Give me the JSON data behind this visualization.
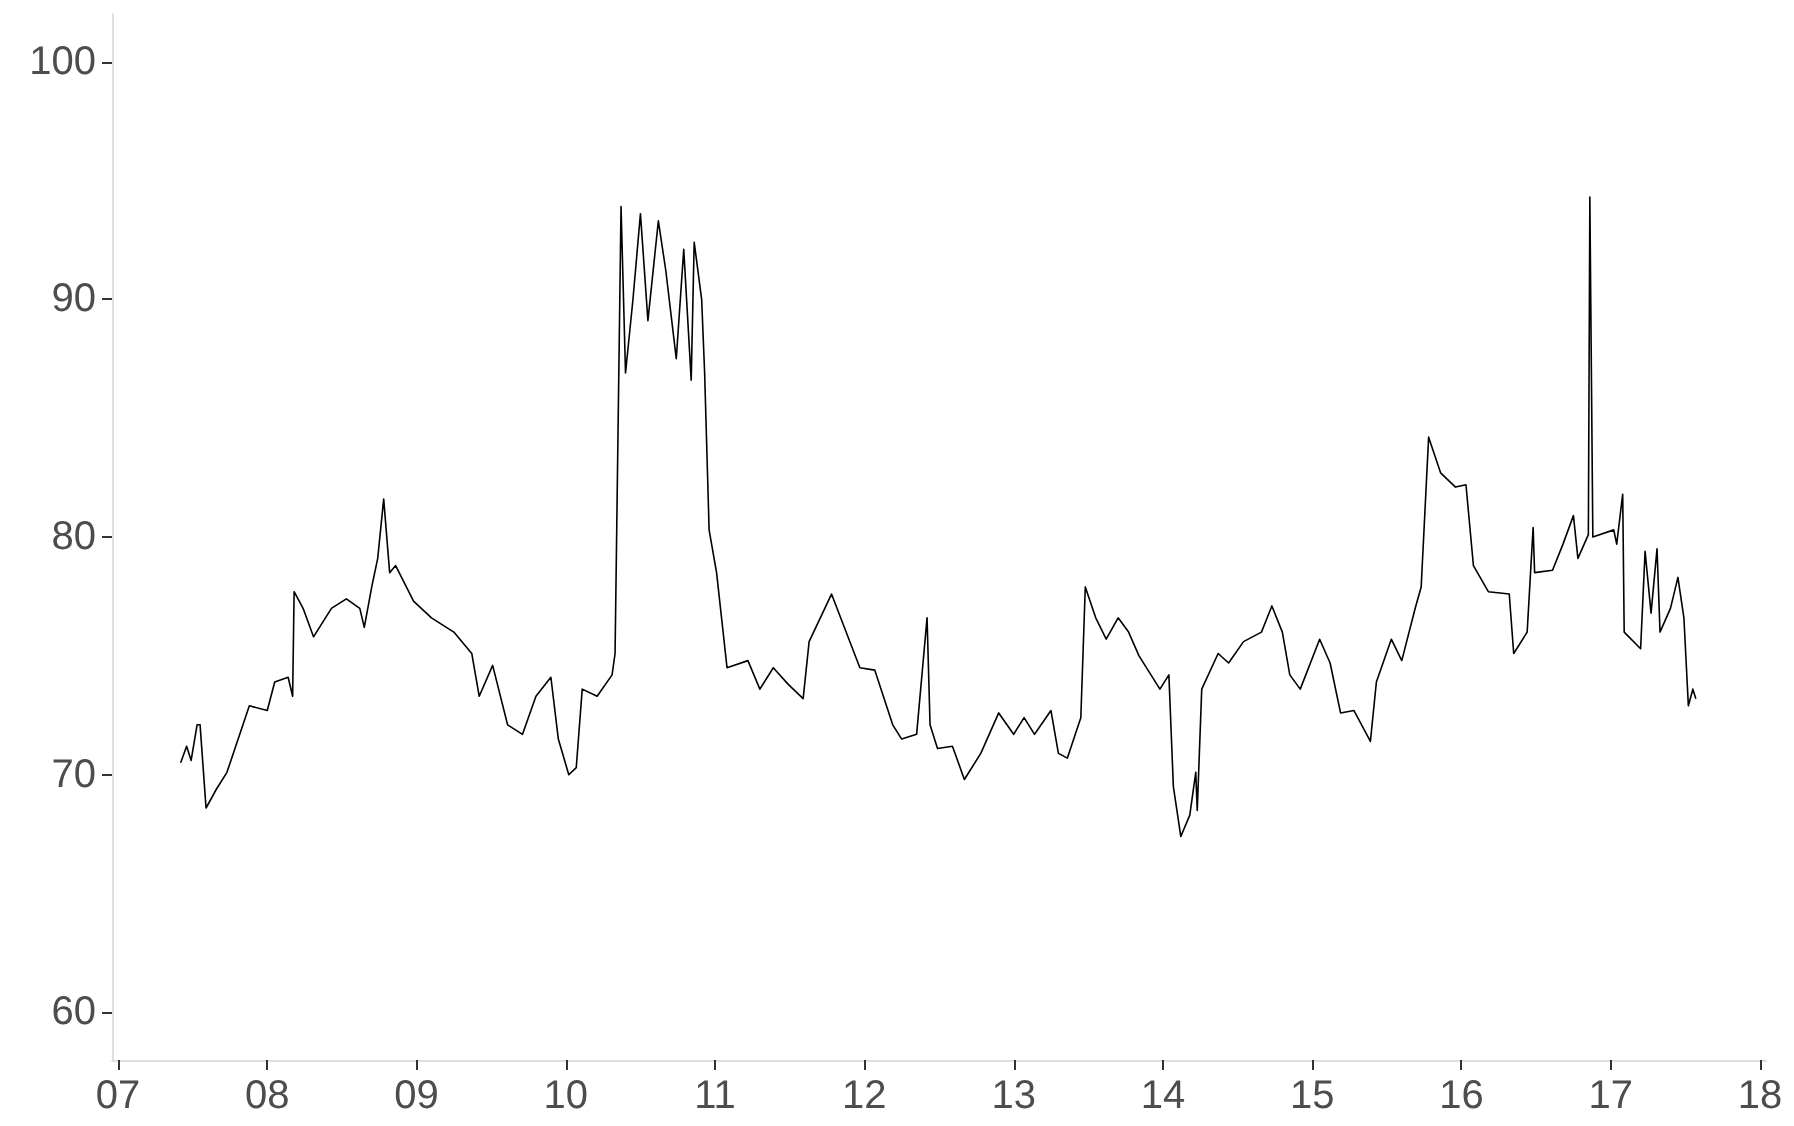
{
  "chart_data": {
    "type": "line",
    "xlim": [
      6.96,
      18.04
    ],
    "ylim": [
      58,
      102
    ],
    "xticks": [
      {
        "value": 7,
        "label": "07"
      },
      {
        "value": 8,
        "label": "08"
      },
      {
        "value": 9,
        "label": "09"
      },
      {
        "value": 10,
        "label": "10"
      },
      {
        "value": 11,
        "label": "11"
      },
      {
        "value": 12,
        "label": "12"
      },
      {
        "value": 13,
        "label": "13"
      },
      {
        "value": 14,
        "label": "14"
      },
      {
        "value": 15,
        "label": "15"
      },
      {
        "value": 16,
        "label": "16"
      },
      {
        "value": 17,
        "label": "17"
      },
      {
        "value": 18,
        "label": "18"
      }
    ],
    "yticks": [
      60,
      70,
      80,
      90,
      100
    ],
    "grid": false,
    "marker": "none",
    "line_style": "solid",
    "series": [
      {
        "color": "#000000",
        "x": [
          7.42,
          7.46,
          7.49,
          7.53,
          7.55,
          7.59,
          7.66,
          7.73,
          7.88,
          8.0,
          8.05,
          8.14,
          8.17,
          8.18,
          8.24,
          8.31,
          8.43,
          8.53,
          8.62,
          8.65,
          8.7,
          8.74,
          8.78,
          8.82,
          8.86,
          8.98,
          9.1,
          9.25,
          9.37,
          9.42,
          9.51,
          9.61,
          9.71,
          9.8,
          9.9,
          9.95,
          10.02,
          10.07,
          10.11,
          10.21,
          10.31,
          10.33,
          10.35,
          10.37,
          10.4,
          10.45,
          10.5,
          10.55,
          10.62,
          10.67,
          10.74,
          10.79,
          10.84,
          10.86,
          10.91,
          10.93,
          10.96,
          11.01,
          11.08,
          11.22,
          11.3,
          11.39,
          11.49,
          11.59,
          11.63,
          11.78,
          11.97,
          12.07,
          12.19,
          12.25,
          12.35,
          12.42,
          12.44,
          12.49,
          12.59,
          12.67,
          12.78,
          12.9,
          13.0,
          13.07,
          13.14,
          13.25,
          13.3,
          13.36,
          13.45,
          13.48,
          13.55,
          13.62,
          13.7,
          13.77,
          13.84,
          13.98,
          14.04,
          14.07,
          14.12,
          14.18,
          14.22,
          14.23,
          14.26,
          14.37,
          14.44,
          14.54,
          14.66,
          14.73,
          14.8,
          14.85,
          14.92,
          15.05,
          15.12,
          15.19,
          15.28,
          15.39,
          15.43,
          15.53,
          15.6,
          15.69,
          15.73,
          15.78,
          15.86,
          15.96,
          16.03,
          16.08,
          16.18,
          16.32,
          16.35,
          16.44,
          16.48,
          16.49,
          16.61,
          16.68,
          16.75,
          16.78,
          16.85,
          16.86,
          16.88,
          17.02,
          17.04,
          17.08,
          17.09,
          17.2,
          17.23,
          17.27,
          17.31,
          17.33,
          17.4,
          17.45,
          17.49,
          17.52,
          17.55,
          17.57
        ],
        "values": [
          70.5,
          71.2,
          70.6,
          72.1,
          72.1,
          68.6,
          69.4,
          70.1,
          72.9,
          72.7,
          73.9,
          74.1,
          73.3,
          77.7,
          77.0,
          75.8,
          77.0,
          77.4,
          77.0,
          76.2,
          77.9,
          79.1,
          81.6,
          78.5,
          78.8,
          77.3,
          76.6,
          76.0,
          75.1,
          73.3,
          74.6,
          72.1,
          71.7,
          73.3,
          74.1,
          71.5,
          70.0,
          70.3,
          73.6,
          73.3,
          74.2,
          75.1,
          84.5,
          93.9,
          86.9,
          90.0,
          93.6,
          89.1,
          93.3,
          91.2,
          87.5,
          92.1,
          86.6,
          92.4,
          90.0,
          86.9,
          80.3,
          78.5,
          74.5,
          74.8,
          73.6,
          74.5,
          73.8,
          73.2,
          75.6,
          77.6,
          74.5,
          74.4,
          72.1,
          71.5,
          71.7,
          76.6,
          72.1,
          71.1,
          71.2,
          69.8,
          70.9,
          72.6,
          71.7,
          72.4,
          71.7,
          72.7,
          70.9,
          70.7,
          72.4,
          77.9,
          76.6,
          75.7,
          76.6,
          76.0,
          75.0,
          73.6,
          74.2,
          69.5,
          67.4,
          68.3,
          70.1,
          68.5,
          73.6,
          75.1,
          74.7,
          75.6,
          76.0,
          77.1,
          76.0,
          74.2,
          73.6,
          75.7,
          74.7,
          72.6,
          72.7,
          71.4,
          73.9,
          75.7,
          74.8,
          77.0,
          77.9,
          84.2,
          82.7,
          82.1,
          82.2,
          78.8,
          77.7,
          77.6,
          75.1,
          76.0,
          80.4,
          78.5,
          78.6,
          79.7,
          80.9,
          79.1,
          80.1,
          94.3,
          80.0,
          80.3,
          79.7,
          81.8,
          76.0,
          75.3,
          79.4,
          76.8,
          79.5,
          76.0,
          77.0,
          78.3,
          76.6,
          72.9,
          73.6,
          73.2
        ]
      }
    ]
  }
}
